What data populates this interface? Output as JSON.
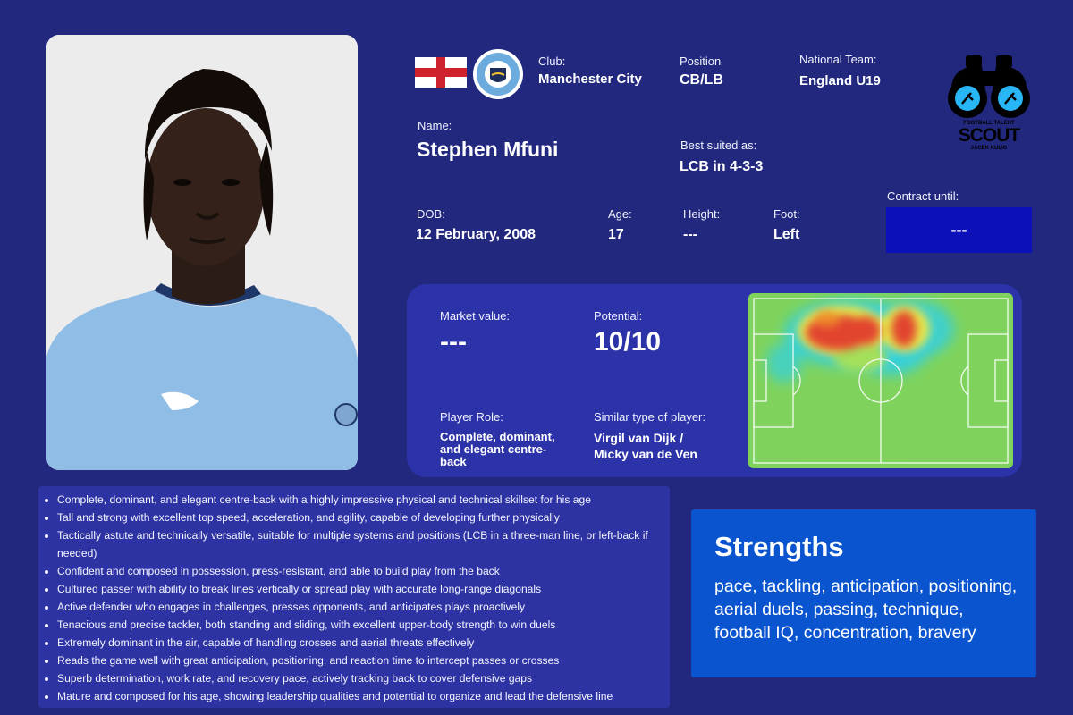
{
  "club": {
    "label": "Club:",
    "value": "Manchester City",
    "crest_text": "MANCHESTER CITY"
  },
  "position": {
    "label": "Position",
    "value": "CB/LB"
  },
  "national_team": {
    "label": "National Team:",
    "value": "England U19"
  },
  "logo": {
    "top": "FOOTBALL TALENT",
    "main": "SCOUT",
    "sub": "JACEK KULIG"
  },
  "name": {
    "label": "Name:",
    "value": "Stephen Mfuni"
  },
  "best_suited": {
    "label": "Best suited as:",
    "value": "LCB in 4-3-3"
  },
  "dob": {
    "label": "DOB:",
    "value": "12 February, 2008"
  },
  "age": {
    "label": "Age:",
    "value": "17"
  },
  "height": {
    "label": "Height:",
    "value": "---"
  },
  "foot": {
    "label": "Foot:",
    "value": "Left"
  },
  "contract": {
    "label": "Contract until:",
    "value": "---"
  },
  "market_value": {
    "label": "Market value:",
    "value": "---"
  },
  "potential": {
    "label": "Potential:",
    "value": "10/10"
  },
  "player_role": {
    "label": "Player Role:",
    "value": "Complete, dominant, and elegant centre-back"
  },
  "similar": {
    "label": "Similar type of player:",
    "line1": "Virgil van Dijk /",
    "line2": "Micky van de Ven"
  },
  "bullets": [
    "Complete, dominant, and elegant centre-back with a highly impressive physical and technical skillset for his age",
    "Tall and strong with excellent top speed, acceleration, and agility, capable of developing further physically",
    "Tactically astute and technically versatile, suitable for multiple systems and positions (LCB in a three-man line, or left-back if needed)",
    "Confident and composed in possession, press-resistant, and able to build play from the back",
    "Cultured passer with ability to break lines vertically or spread play with accurate long-range diagonals",
    "Active defender who engages in challenges, presses opponents, and anticipates plays proactively",
    "Tenacious and precise tackler, both standing and sliding, with excellent upper-body strength to win duels",
    "Extremely dominant in the air, capable of handling crosses and aerial threats effectively",
    "Reads the game well with great anticipation, positioning, and reaction time to intercept passes or crosses",
    "Superb determination, work rate, and recovery pace, actively tracking back to cover defensive gaps",
    "Mature and composed for his age, showing leadership qualities and potential to organize and lead the defensive line"
  ],
  "strengths": {
    "title": "Strengths",
    "text": "pace, tackling, anticipation, positioning, aerial duels, passing, technique, football IQ, concentration, bravery"
  },
  "colors": {
    "background": "#22287e",
    "panel": "#2c32a8",
    "contract_box": "#0c10b8",
    "strengths_box": "#0a55cf",
    "pitch_green": "#7fd35c",
    "shirt": "#8fbde6"
  },
  "icons": {
    "flag": "england-flag-icon",
    "crest": "manchester-city-crest-icon",
    "logo": "binoculars-scout-logo",
    "heatmap": "pitch-heatmap"
  }
}
